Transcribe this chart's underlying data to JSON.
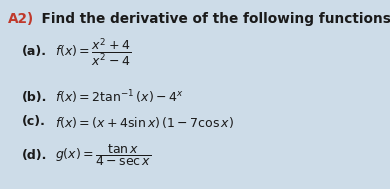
{
  "title_label": "A2)",
  "title_text": "  Find the derivative of the following functions:",
  "title_color": "#c0392b",
  "body_color": "#1a1a1a",
  "background_color": "#cddce8",
  "items": [
    {
      "label": "(a).",
      "math": "$f(x) = \\dfrac{x^2 + 4}{x^2 - 4}$"
    },
    {
      "label": "(b).",
      "math": "$f(x) = 2\\tan^{-1}(x) - 4^x$"
    },
    {
      "label": "(c).",
      "math": "$f(x) = (x + 4\\sin x)\\,(1 - 7\\cos x)$"
    },
    {
      "label": "(d).",
      "math": "$g(x) = \\dfrac{\\tan x}{4 - \\sec x}$"
    }
  ],
  "title_fontsize": 9.8,
  "item_label_fontsize": 9.0,
  "item_math_fontsize": 9.0,
  "figwidth": 3.9,
  "figheight": 1.89,
  "dpi": 100
}
